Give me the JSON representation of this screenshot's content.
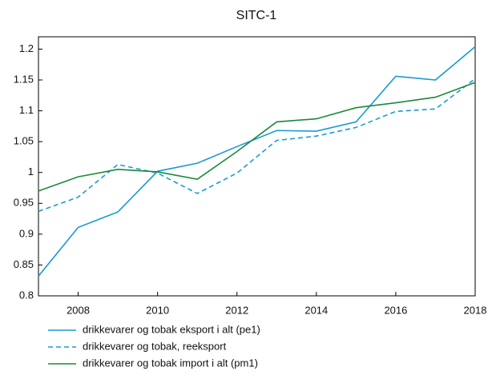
{
  "chart_data": {
    "type": "line",
    "title": "SITC-1",
    "x": [
      2007,
      2008,
      2009,
      2010,
      2011,
      2012,
      2013,
      2014,
      2015,
      2016,
      2017,
      2018
    ],
    "series": [
      {
        "name": "drikkevarer og tobak eksport i alt (pe1)",
        "color": "#1a9ad6",
        "line_style": "solid",
        "values": [
          0.832,
          0.911,
          0.936,
          1.002,
          1.015,
          1.042,
          1.068,
          1.067,
          1.082,
          1.156,
          1.15,
          1.204
        ]
      },
      {
        "name": "drikkevarer og tobak, reeksport",
        "color": "#1a9ad6",
        "line_style": "dashed",
        "values": [
          0.937,
          0.96,
          1.013,
          0.999,
          0.966,
          0.999,
          1.052,
          1.059,
          1.073,
          1.099,
          1.103,
          1.152
        ]
      },
      {
        "name": "drikkevarer og tobak import i alt (pm1)",
        "color": "#1a8a3a",
        "line_style": "solid",
        "values": [
          0.97,
          0.993,
          1.005,
          1.001,
          0.989,
          1.034,
          1.082,
          1.087,
          1.105,
          1.113,
          1.122,
          1.146
        ]
      }
    ],
    "xlim": [
      2007,
      2018
    ],
    "xticks": [
      2008,
      2010,
      2012,
      2014,
      2016,
      2018
    ],
    "ylim": [
      0.8,
      1.22
    ],
    "yticks": [
      0.8,
      0.85,
      0.9,
      0.95,
      1,
      1.05,
      1.1,
      1.15,
      1.2
    ],
    "grid": false,
    "legend": "bottom-left"
  }
}
